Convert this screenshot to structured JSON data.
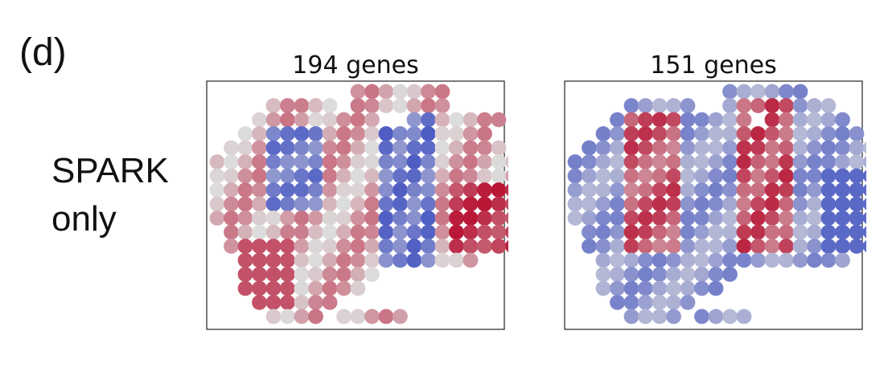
{
  "panel_label": "(d)",
  "method_label": [
    "SPARK",
    "only"
  ],
  "chart_data": [
    {
      "type": "scatter",
      "title": "194 genes",
      "colormap": "coolwarm",
      "colors": {
        "low": "#3b4cc0",
        "mid": "#dddcdc",
        "high": "#b40426"
      },
      "rows": [
        "..........#######.....",
        "....#####.#######.....",
        "...#########..#######.",
        "..##################..",
        ".####################.",
        "######################",
        "######################",
        "######################",
        "######################",
        "######################",
        ".#####################",
        ".#####################",
        "..#################...",
        "..##########..........",
        "..#########...........",
        "...######.............",
        "....####.#####........"
      ]
    },
    {
      "type": "scatter",
      "title": "151 genes",
      "colormap": "coolwarm",
      "colors": {
        "low": "#3b4cc0",
        "mid": "#dddcdc",
        "high": "#b40426"
      },
      "rows": [
        "...........######.....",
        "....#####..########...",
        "...##########.######..",
        "..###################.",
        ".#####################",
        "######################",
        "######################",
        "######################",
        "######################",
        "######################",
        ".#####################",
        ".#####################",
        "..##################..",
        "..##########..........",
        "..#########...........",
        "...######.............",
        "....####.####........."
      ]
    }
  ]
}
